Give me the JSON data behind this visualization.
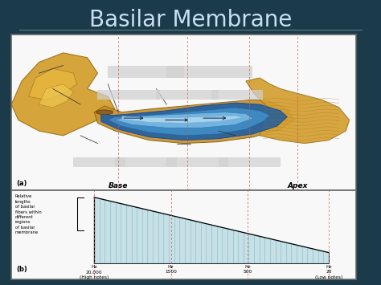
{
  "title": "Basilar Membrane",
  "title_color": "#c8e0f0",
  "title_fontsize": 20,
  "bg_color": "#1b3a4a",
  "panel_bg": "#f8f8f8",
  "panel_border": "#666666",
  "label_a": "(a)",
  "label_b": "(b)",
  "base_label": "Base",
  "apex_label": "Apex",
  "ylabel_text": "Relative\nlengths\nof basilar\nfibers within\ndifferent\nregions\nof basilar\nmembrane",
  "freq_labels_line1": [
    "Hz",
    "Hz",
    "Hz",
    "Hz"
  ],
  "freq_labels_line2": [
    "20,000",
    "1500",
    "500",
    "20"
  ],
  "freq_labels_line3": [
    "(High notes)",
    "",
    "",
    "(Low notes)"
  ],
  "triangle_fill_color": "#9ecdd6",
  "dashed_line_color": "#cc5555",
  "stripe_color": "#5aaabb",
  "separator_color": "#5a7a8a",
  "gray_box_color": "#d0d0d0",
  "ear_gold": "#d4a030",
  "ear_gold_dark": "#a07018",
  "cochlea_dark_blue": "#2060a0",
  "cochlea_mid_blue": "#4090c8",
  "cochlea_light_blue": "#80c0e8",
  "cochlea_lightest": "#b8ddf0",
  "cochlea_outline_gold": "#c89028",
  "arrow_color": "#102050"
}
